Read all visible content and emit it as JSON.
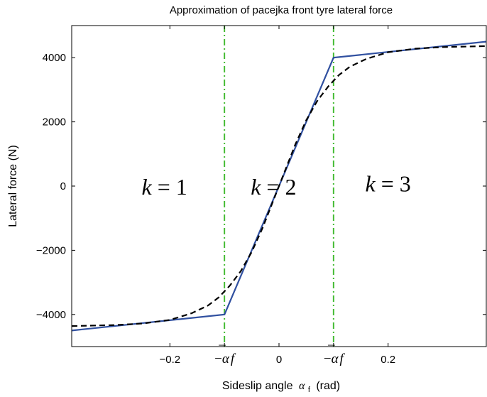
{
  "chart_data": {
    "type": "line",
    "title": "Approximation of pacejka front tyre lateral force",
    "xlabel": "Sideslip angle",
    "xlabel_symbol": "α",
    "xlabel_subscript": "f",
    "xlabel_unit": "(rad)",
    "ylabel": "Lateral force (N)",
    "xlim": [
      -0.38,
      0.38
    ],
    "ylim": [
      -5000,
      5000
    ],
    "grid": false,
    "x_ticks": [
      {
        "value": -0.2,
        "label": "−0.2"
      },
      {
        "value": -0.1,
        "label": "",
        "math": true
      },
      {
        "value": 0,
        "label": "0"
      },
      {
        "value": 0.1,
        "label": "",
        "math": true
      },
      {
        "value": 0.2,
        "label": "0.2"
      }
    ],
    "x_tick_math": {
      "sign": "−",
      "symbol": "α",
      "bar": "¯",
      "suffix": "f"
    },
    "y_ticks": [
      {
        "value": -4000,
        "label": "−4000"
      },
      {
        "value": -2000,
        "label": "−2000"
      },
      {
        "value": 0,
        "label": "0"
      },
      {
        "value": 2000,
        "label": "2000"
      },
      {
        "value": 4000,
        "label": "4000"
      }
    ],
    "series": [
      {
        "name": "",
        "style": "solid",
        "color": "#3050a0",
        "x": [
          -0.38,
          -0.1,
          0.1,
          0.38
        ],
        "y": [
          -4500,
          -4000,
          4000,
          4500
        ]
      },
      {
        "name": "",
        "style": "dashed",
        "color": "#000000",
        "x": [
          -0.38,
          -0.3,
          -0.25,
          -0.2,
          -0.16,
          -0.13,
          -0.11,
          -0.09,
          -0.07,
          -0.05,
          -0.03,
          0,
          0.03,
          0.05,
          0.07,
          0.09,
          0.11,
          0.13,
          0.16,
          0.2,
          0.25,
          0.3,
          0.38
        ],
        "y": [
          -4360,
          -4330,
          -4280,
          -4170,
          -3960,
          -3720,
          -3460,
          -3100,
          -2650,
          -2050,
          -1300,
          0,
          1300,
          2050,
          2650,
          3100,
          3460,
          3720,
          3960,
          4170,
          4280,
          4330,
          4360
        ]
      }
    ],
    "vlines": [
      {
        "x": -0.1,
        "style": "dashdot",
        "color": "#44bb33"
      },
      {
        "x": 0.1,
        "style": "dashdot",
        "color": "#44bb33"
      }
    ],
    "annotations": [
      {
        "k": "k",
        "eq": "= 1",
        "x": -0.21,
        "y": 0
      },
      {
        "k": "k",
        "eq": "= 2",
        "x": -0.01,
        "y": 0
      },
      {
        "k": "k",
        "eq": "= 3",
        "x": 0.2,
        "y": 100
      }
    ]
  }
}
